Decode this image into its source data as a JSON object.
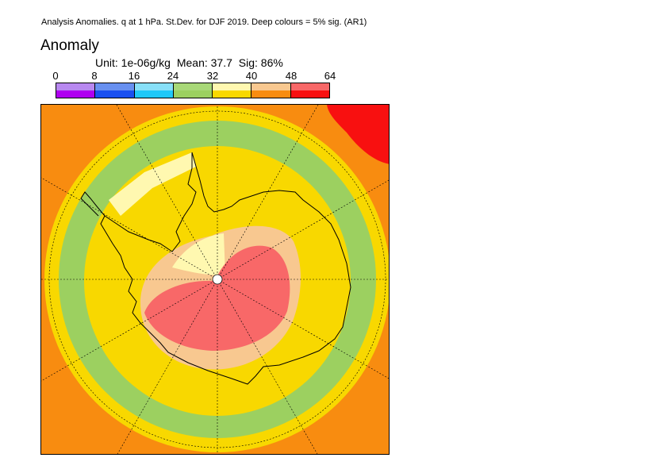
{
  "header": {
    "title": "Analysis Anomalies. q at 1 hPa. St.Dev. for DJF 2019.  Deep colours = 5% sig. (AR1)",
    "panel_title": "Anomaly"
  },
  "stats": {
    "unit": "Unit: 1e-06g/kg",
    "mean": "Mean: 37.7",
    "sig": "Sig: 86%"
  },
  "colorbar": {
    "ticks": [
      "0",
      "8",
      "16",
      "24",
      "32",
      "40",
      "48",
      "64"
    ],
    "deep_colors": [
      "#b000f0",
      "#1a50f0",
      "#20c8f8",
      "#9cd060",
      "#f8d800",
      "#f88c10",
      "#f81010"
    ],
    "light_colors": [
      "#b888f0",
      "#6890f0",
      "#88e0f8",
      "#a8d878",
      "#fff8b0",
      "#f8c890",
      "#f86868"
    ]
  },
  "map": {
    "projection": "south-polar-stereographic",
    "fill_colors": {
      "orange": "#f88c10",
      "yellow": "#f8d800",
      "green": "#9cd060",
      "light_yellow": "#fff8b0",
      "light_orange": "#f8c890",
      "light_red": "#f86868",
      "red": "#f81010"
    }
  }
}
